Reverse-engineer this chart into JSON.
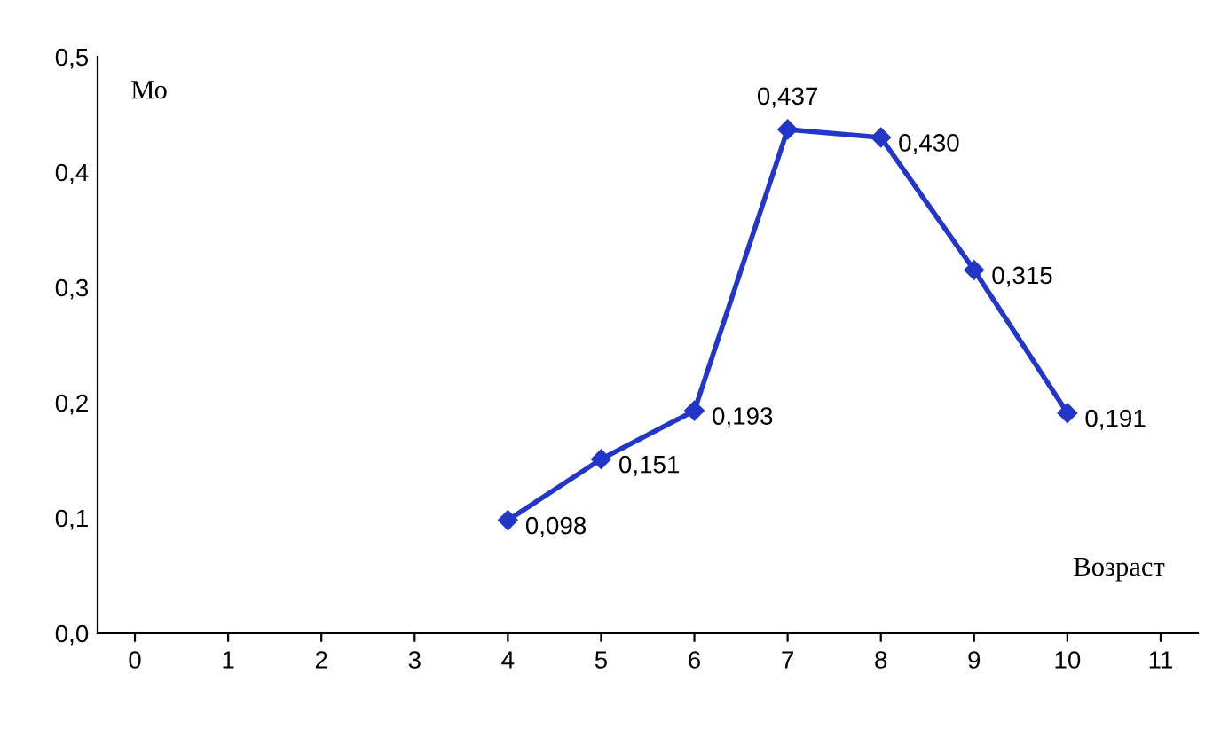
{
  "chart_data": {
    "type": "line",
    "xlabel": "Возраст",
    "ylabel": "Мо",
    "x": [
      4,
      5,
      6,
      7,
      8,
      9,
      10
    ],
    "series": [
      {
        "color": "#2236c8",
        "values": [
          0.098,
          0.151,
          0.193,
          0.437,
          0.43,
          0.315,
          0.191
        ],
        "value_labels": [
          "0,098",
          "0,151",
          "0,193",
          "0,437",
          "0,430",
          "0,315",
          "0,191"
        ]
      }
    ],
    "xlim": [
      -0.4,
      11.4
    ],
    "ylim": [
      0,
      0.5
    ],
    "xticks": [
      0,
      1,
      2,
      3,
      4,
      5,
      6,
      7,
      8,
      9,
      10,
      11
    ],
    "yticks": [
      {
        "value": 0,
        "label": "0,0"
      },
      {
        "value": 0.1,
        "label": "0,1"
      },
      {
        "value": 0.2,
        "label": "0,2"
      },
      {
        "value": 0.3,
        "label": "0,3"
      },
      {
        "value": 0.4,
        "label": "0,4"
      },
      {
        "value": 0.5,
        "label": "0,5"
      }
    ],
    "marker": "diamond",
    "line_style": "solid",
    "grid": false,
    "legend": false
  }
}
